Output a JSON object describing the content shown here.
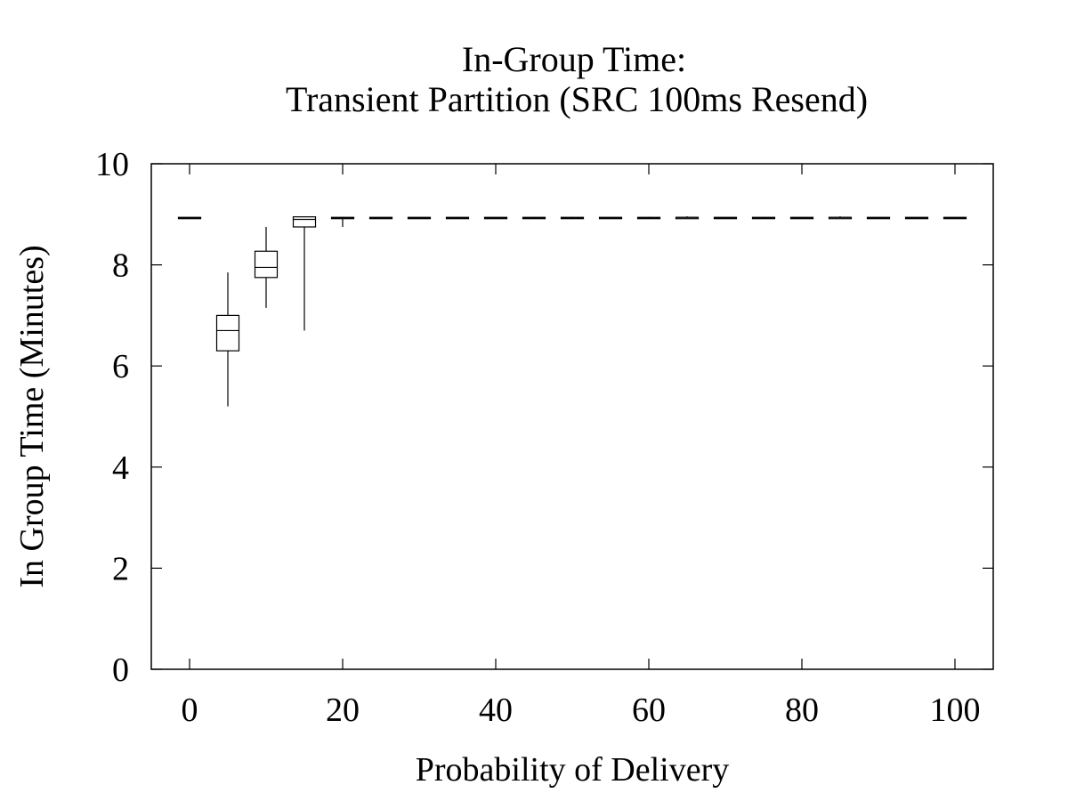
{
  "chart_data": {
    "type": "box",
    "title": [
      "In-Group Time:",
      "Transient Partition (SRC 100ms Resend)"
    ],
    "xlabel": "Probability of Delivery",
    "ylabel": "In Group Time (Minutes)",
    "xlim": [
      -5,
      105
    ],
    "ylim": [
      0,
      10
    ],
    "xticks": [
      0,
      20,
      40,
      60,
      80,
      100
    ],
    "yticks": [
      0,
      2,
      4,
      6,
      8,
      10
    ],
    "grid": false,
    "legend": "none",
    "boxes": [
      {
        "x": 0,
        "min": 8.92,
        "q1": 8.92,
        "median": 8.93,
        "q3": 8.94,
        "max": 8.95
      },
      {
        "x": 5,
        "min": 5.2,
        "q1": 6.3,
        "median": 6.7,
        "q3": 7.0,
        "max": 7.85
      },
      {
        "x": 10,
        "min": 7.15,
        "q1": 7.75,
        "median": 7.95,
        "q3": 8.27,
        "max": 8.75
      },
      {
        "x": 15,
        "min": 6.7,
        "q1": 8.75,
        "median": 8.9,
        "q3": 8.95,
        "max": 8.96
      },
      {
        "x": 20,
        "min": 8.75,
        "q1": 8.92,
        "median": 8.93,
        "q3": 8.94,
        "max": 8.95
      },
      {
        "x": 25,
        "min": 8.92,
        "q1": 8.92,
        "median": 8.93,
        "q3": 8.94,
        "max": 8.95
      },
      {
        "x": 30,
        "min": 8.92,
        "q1": 8.92,
        "median": 8.93,
        "q3": 8.94,
        "max": 8.95
      },
      {
        "x": 35,
        "min": 8.92,
        "q1": 8.92,
        "median": 8.93,
        "q3": 8.94,
        "max": 8.95
      },
      {
        "x": 40,
        "min": 8.92,
        "q1": 8.92,
        "median": 8.93,
        "q3": 8.94,
        "max": 8.95
      },
      {
        "x": 45,
        "min": 8.92,
        "q1": 8.92,
        "median": 8.93,
        "q3": 8.94,
        "max": 8.95
      },
      {
        "x": 50,
        "min": 8.92,
        "q1": 8.92,
        "median": 8.93,
        "q3": 8.94,
        "max": 8.95
      },
      {
        "x": 55,
        "min": 8.92,
        "q1": 8.92,
        "median": 8.93,
        "q3": 8.94,
        "max": 8.95
      },
      {
        "x": 60,
        "min": 8.92,
        "q1": 8.92,
        "median": 8.93,
        "q3": 8.94,
        "max": 8.95
      },
      {
        "x": 65,
        "min": 8.92,
        "q1": 8.93,
        "median": 8.94,
        "q3": 8.94,
        "max": 8.96
      },
      {
        "x": 70,
        "min": 8.92,
        "q1": 8.92,
        "median": 8.93,
        "q3": 8.94,
        "max": 8.95
      },
      {
        "x": 75,
        "min": 8.92,
        "q1": 8.92,
        "median": 8.93,
        "q3": 8.94,
        "max": 8.95
      },
      {
        "x": 80,
        "min": 8.92,
        "q1": 8.92,
        "median": 8.93,
        "q3": 8.94,
        "max": 8.95
      },
      {
        "x": 85,
        "min": 8.92,
        "q1": 8.93,
        "median": 8.94,
        "q3": 8.94,
        "max": 8.96
      },
      {
        "x": 90,
        "min": 8.92,
        "q1": 8.92,
        "median": 8.93,
        "q3": 8.94,
        "max": 8.95
      },
      {
        "x": 95,
        "min": 8.92,
        "q1": 8.92,
        "median": 8.93,
        "q3": 8.94,
        "max": 8.95
      },
      {
        "x": 100,
        "min": 8.92,
        "q1": 8.92,
        "median": 8.93,
        "q3": 8.94,
        "max": 8.95
      }
    ]
  }
}
